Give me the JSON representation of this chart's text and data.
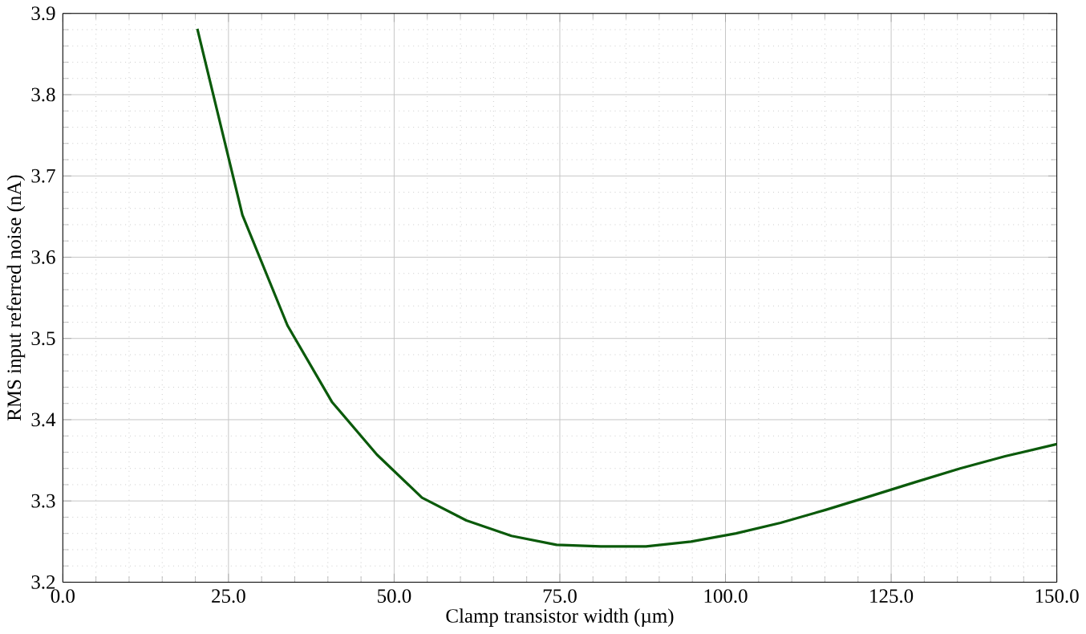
{
  "chart_data": {
    "type": "line",
    "xlabel": "Clamp transistor width (µm)",
    "ylabel": "RMS input referred noise (nA)",
    "xlim": [
      0,
      150
    ],
    "ylim": [
      3.2,
      3.9
    ],
    "xticks": [
      {
        "value": 0,
        "label": "0.0"
      },
      {
        "value": 25,
        "label": "25.0"
      },
      {
        "value": 50,
        "label": "50.0"
      },
      {
        "value": 75,
        "label": "75.0"
      },
      {
        "value": 100,
        "label": "100.0"
      },
      {
        "value": 125,
        "label": "125.0"
      },
      {
        "value": 150,
        "label": "150.0"
      }
    ],
    "yticks": [
      3.2,
      3.3,
      3.4,
      3.5,
      3.6,
      3.7,
      3.8,
      3.9
    ],
    "grid": true,
    "series": [
      {
        "color": "#0b5a0b",
        "x": [
          20.3,
          27.1,
          33.9,
          40.6,
          47.4,
          54.2,
          60.9,
          67.7,
          74.5,
          81.2,
          88.0,
          94.8,
          101.6,
          108.3,
          115.1,
          121.9,
          128.6,
          135.4,
          142.2,
          150
        ],
        "values": [
          3.881,
          3.652,
          3.516,
          3.422,
          3.357,
          3.304,
          3.276,
          3.257,
          3.246,
          3.244,
          3.244,
          3.25,
          3.26,
          3.273,
          3.289,
          3.306,
          3.323,
          3.34,
          3.355,
          3.37
        ]
      }
    ]
  }
}
